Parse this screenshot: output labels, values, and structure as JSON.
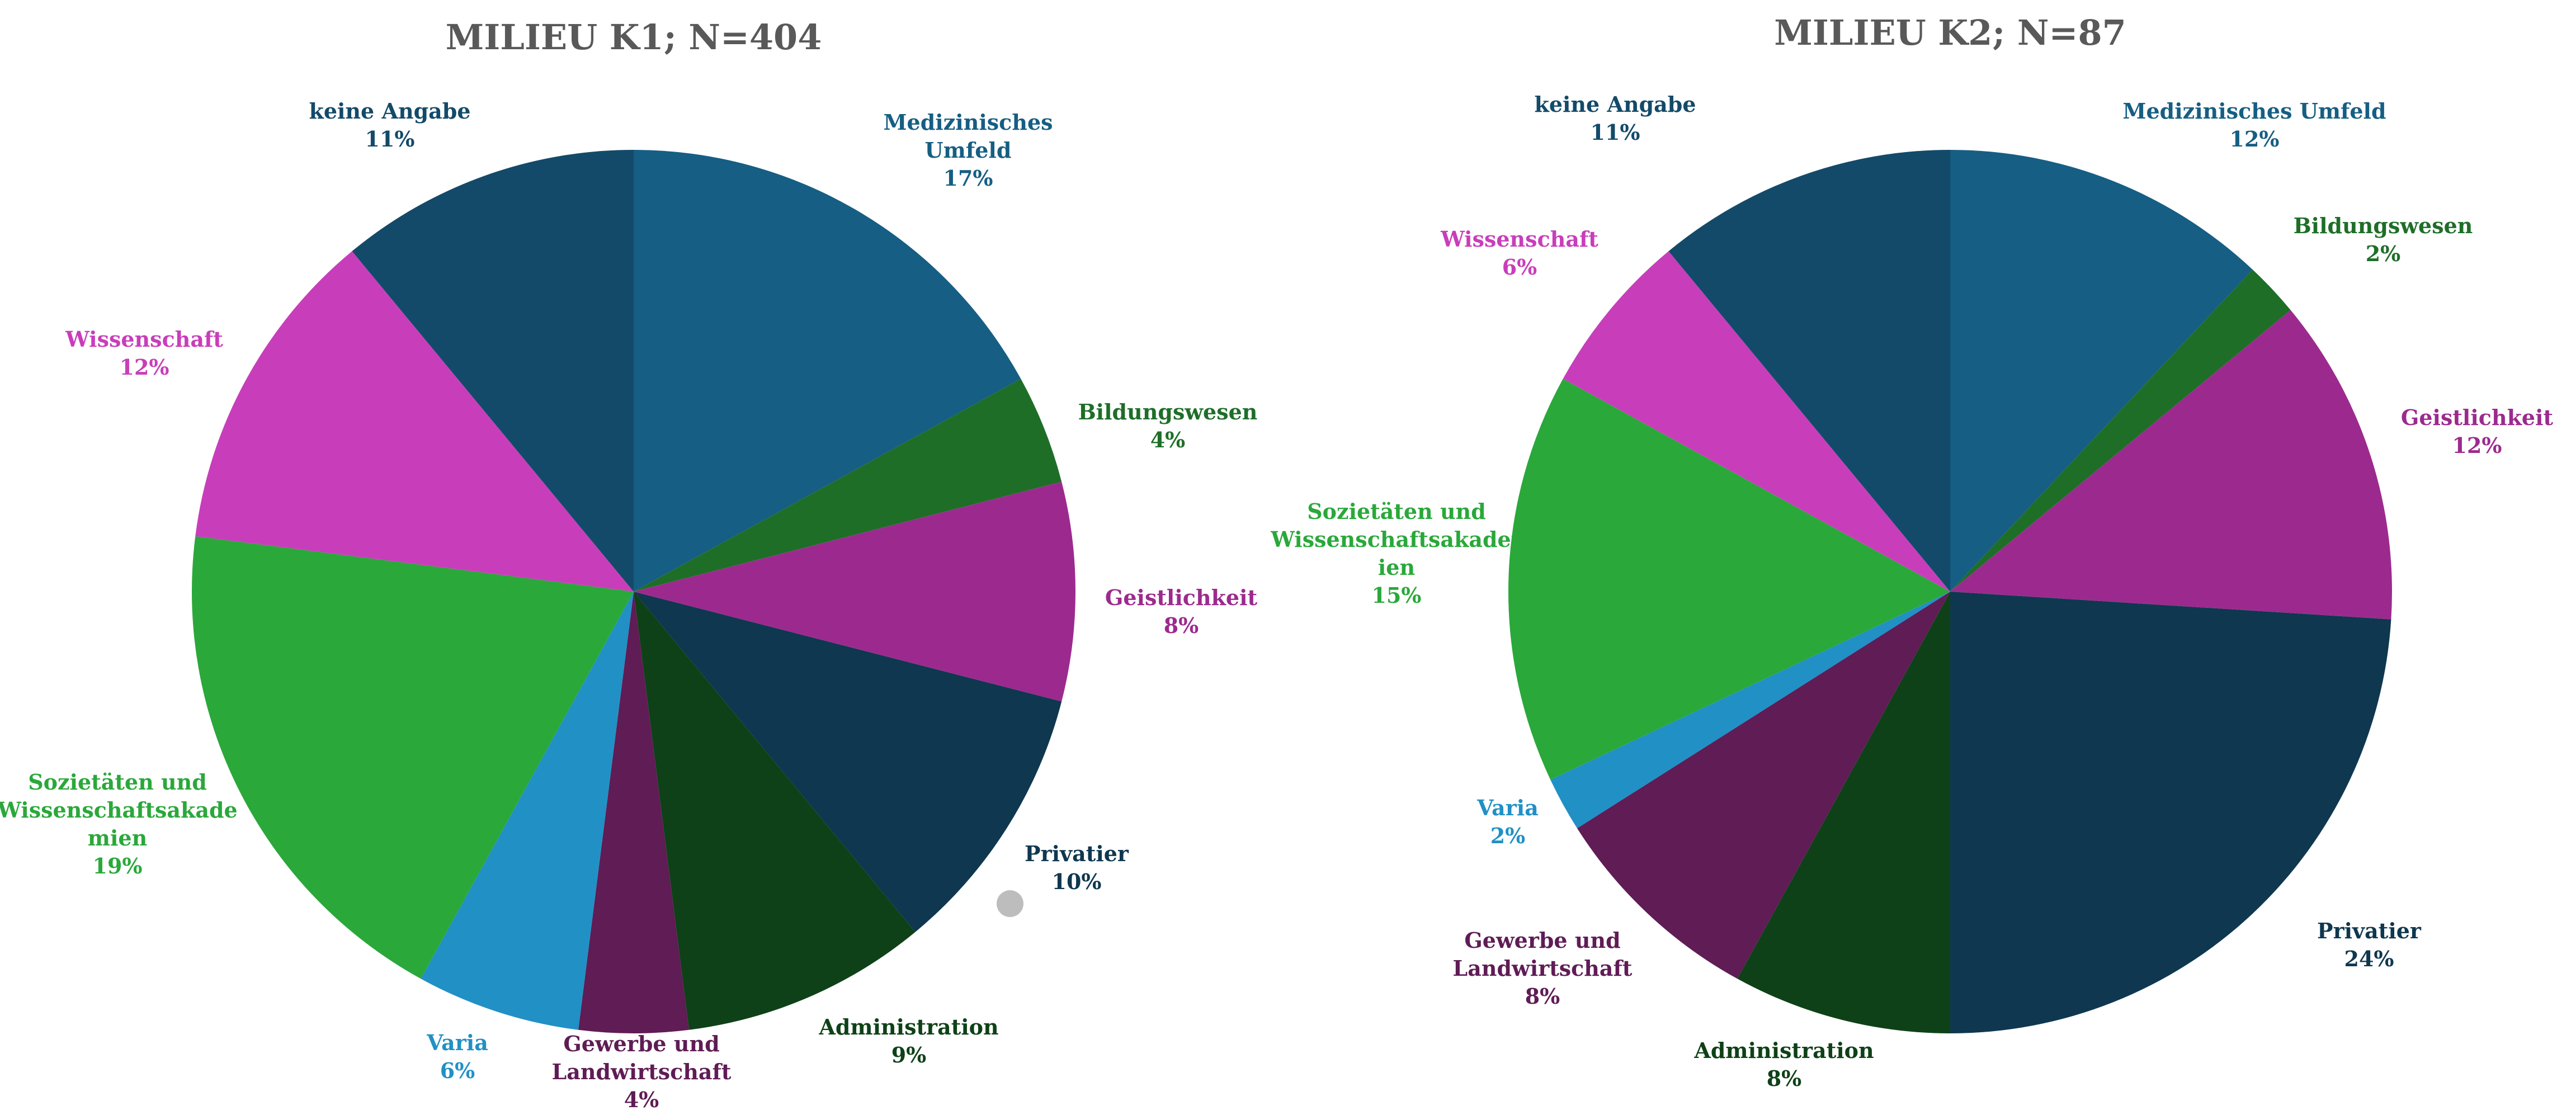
{
  "chart_data": [
    {
      "type": "pie",
      "title": "MILIEU K1; N=404",
      "start_angle_deg": 0,
      "direction": "clockwise",
      "slices": [
        {
          "label": "Medizinisches Umfeld",
          "label_lines": [
            "Medizinisches",
            "Umfeld"
          ],
          "value": 17,
          "value_label": "17%",
          "color": "#165E83",
          "label_color": "#165E83"
        },
        {
          "label": "Bildungswesen",
          "label_lines": [
            "Bildungswesen"
          ],
          "value": 4,
          "value_label": "4%",
          "color": "#1E6E28",
          "label_color": "#1E6E28"
        },
        {
          "label": "Geistlichkeit",
          "label_lines": [
            "Geistlichkeit"
          ],
          "value": 8,
          "value_label": "8%",
          "color": "#9C2A8E",
          "label_color": "#9C2A8E"
        },
        {
          "label": "Privatier",
          "label_lines": [
            "Privatier"
          ],
          "value": 10,
          "value_label": "10%",
          "color": "#0F374F",
          "label_color": "#0F374F"
        },
        {
          "label": "Administration",
          "label_lines": [
            "Administration"
          ],
          "value": 9,
          "value_label": "9%",
          "color": "#0E4117",
          "label_color": "#0E4117"
        },
        {
          "label": "Gewerbe und Landwirtschaft",
          "label_lines": [
            "Gewerbe und",
            "Landwirtschaft"
          ],
          "value": 4,
          "value_label": "4%",
          "color": "#5F1C55",
          "label_color": "#5F1C55"
        },
        {
          "label": "Varia",
          "label_lines": [
            "Varia"
          ],
          "value": 6,
          "value_label": "6%",
          "color": "#2190C5",
          "label_color": "#2190C5"
        },
        {
          "label": "Sozietäten und Wissenschaftsakademien",
          "label_lines": [
            "Sozietäten und",
            "Wissenschaftsakade",
            "mien"
          ],
          "value": 19,
          "value_label": "19%",
          "color": "#2AA83A",
          "label_color": "#2AA83A"
        },
        {
          "label": "Wissenschaft",
          "label_lines": [
            "Wissenschaft"
          ],
          "value": 12,
          "value_label": "12%",
          "color": "#C83EBA",
          "label_color": "#C83EBA"
        },
        {
          "label": "keine Angabe",
          "label_lines": [
            "keine Angabe"
          ],
          "value": 11,
          "value_label": "11%",
          "color": "#134A69",
          "label_color": "#134A69"
        }
      ]
    },
    {
      "type": "pie",
      "title": "MILIEU K2; N=87",
      "start_angle_deg": 0,
      "direction": "clockwise",
      "slices": [
        {
          "label": "Medizinisches Umfeld",
          "label_lines": [
            "Medizinisches Umfeld"
          ],
          "value": 12,
          "value_label": "12%",
          "color": "#165E83",
          "label_color": "#165E83"
        },
        {
          "label": "Bildungswesen",
          "label_lines": [
            "Bildungswesen"
          ],
          "value": 2,
          "value_label": "2%",
          "color": "#1E6E28",
          "label_color": "#1E6E28"
        },
        {
          "label": "Geistlichkeit",
          "label_lines": [
            "Geistlichkeit"
          ],
          "value": 12,
          "value_label": "12%",
          "color": "#9C2A8E",
          "label_color": "#9C2A8E"
        },
        {
          "label": "Privatier",
          "label_lines": [
            "Privatier"
          ],
          "value": 24,
          "value_label": "24%",
          "color": "#0F374F",
          "label_color": "#0F374F"
        },
        {
          "label": "Administration",
          "label_lines": [
            "Administration"
          ],
          "value": 8,
          "value_label": "8%",
          "color": "#0E4117",
          "label_color": "#0E4117"
        },
        {
          "label": "Gewerbe und Landwirtschaft",
          "label_lines": [
            "Gewerbe und",
            "Landwirtschaft"
          ],
          "value": 8,
          "value_label": "8%",
          "color": "#5F1C55",
          "label_color": "#5F1C55"
        },
        {
          "label": "Varia",
          "label_lines": [
            "Varia"
          ],
          "value": 2,
          "value_label": "2%",
          "color": "#2190C5",
          "label_color": "#2190C5"
        },
        {
          "label": "Sozietäten und Wissenschaftsakademien",
          "label_lines": [
            "Sozietäten und",
            "Wissenschaftsakader",
            "ien"
          ],
          "value": 15,
          "value_label": "15%",
          "color": "#2AA83A",
          "label_color": "#2AA83A"
        },
        {
          "label": "Wissenschaft",
          "label_lines": [
            "Wissenschaft"
          ],
          "value": 6,
          "value_label": "6%",
          "color": "#C83EBA",
          "label_color": "#C83EBA"
        },
        {
          "label": "keine Angabe",
          "label_lines": [
            "keine Angabe"
          ],
          "value": 11,
          "value_label": "11%",
          "color": "#134A69",
          "label_color": "#134A69"
        }
      ]
    }
  ]
}
